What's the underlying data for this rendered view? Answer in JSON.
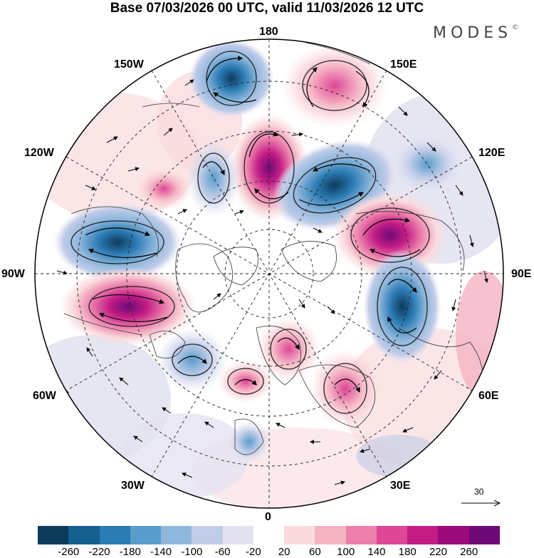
{
  "header": {
    "title": "Base 07/03/2026 00 UTC, valid 11/03/2026 12 UTC",
    "brand": "MODES",
    "brand_mark": "©"
  },
  "map": {
    "projection": "north-polar-stereographic",
    "longitude_labels": {
      "n180": "180",
      "w150": "150W",
      "e150": "150E",
      "w120": "120W",
      "e120": "120E",
      "w90": "90W",
      "e90": "90E",
      "w60": "60W",
      "e60": "60E",
      "w30": "30W",
      "e30": "30E",
      "s0": "0"
    },
    "vector_scale_label": "30",
    "anomaly_centres": [
      {
        "name": "north-pacific-low-a",
        "sign": "negative",
        "value": -140
      },
      {
        "name": "north-pacific-high",
        "sign": "positive",
        "value": 120
      },
      {
        "name": "aleutian-high",
        "sign": "positive",
        "value": 240
      },
      {
        "name": "east-siberian-low",
        "sign": "negative",
        "value": -240
      },
      {
        "name": "central-siberian-high",
        "sign": "positive",
        "value": 240
      },
      {
        "name": "ural-low",
        "sign": "negative",
        "value": -220
      },
      {
        "name": "canada-low",
        "sign": "negative",
        "value": -240
      },
      {
        "name": "hudson-high",
        "sign": "positive",
        "value": 220
      },
      {
        "name": "atlantic-low",
        "sign": "negative",
        "value": -160
      },
      {
        "name": "scandinavia-high",
        "sign": "positive",
        "value": 160
      },
      {
        "name": "europe-high",
        "sign": "positive",
        "value": 100
      }
    ]
  },
  "colorbar": {
    "colors": [
      "#0d3b5c",
      "#15608f",
      "#2b7cb4",
      "#5a9ccb",
      "#8fb7dc",
      "#c0cce8",
      "#e3e2f1",
      "#ffffff",
      "#fadbdd",
      "#f5b3c3",
      "#ec7fab",
      "#dd4796",
      "#c31c85",
      "#9c0a7c",
      "#6d0a76"
    ],
    "ticks": [
      "-260",
      "-220",
      "-180",
      "-140",
      "-100",
      "-60",
      "-20",
      "20",
      "60",
      "100",
      "140",
      "180",
      "220",
      "260"
    ]
  }
}
